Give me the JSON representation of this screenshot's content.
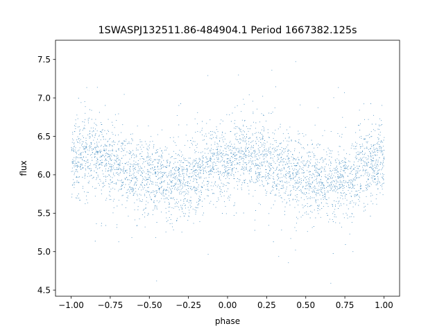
{
  "chart_data": {
    "type": "scatter",
    "title": "1SWASPJ132511.86-484904.1 Period 1667382.125s",
    "xlabel": "phase",
    "ylabel": "flux",
    "xlim": [
      -1.1,
      1.1
    ],
    "ylim": [
      4.42,
      7.75
    ],
    "x_ticks": [
      -1.0,
      -0.75,
      -0.5,
      -0.25,
      0.0,
      0.25,
      0.5,
      0.75,
      1.0
    ],
    "x_tick_labels": [
      "−1.00",
      "−0.75",
      "−0.50",
      "−0.25",
      "0.00",
      "0.25",
      "0.50",
      "0.75",
      "1.00"
    ],
    "y_ticks": [
      4.5,
      5.0,
      5.5,
      6.0,
      6.5,
      7.0,
      7.5
    ],
    "y_tick_labels": [
      "4.5",
      "5.0",
      "5.5",
      "6.0",
      "6.5",
      "7.0",
      "7.5"
    ],
    "grid": false,
    "legend": "none",
    "marker_color": "#1f77b4",
    "series": [
      {
        "x": [
          -1.0,
          -0.95,
          -0.9,
          -0.85,
          -0.8,
          -0.75,
          -0.7,
          -0.65,
          -0.6,
          -0.55,
          -0.5,
          -0.45,
          -0.4,
          -0.35,
          -0.3,
          -0.25,
          -0.2,
          -0.15,
          -0.1,
          -0.05,
          0.0,
          0.05,
          0.1,
          0.15,
          0.2,
          0.25,
          0.3,
          0.35,
          0.4,
          0.45,
          0.5,
          0.55,
          0.6,
          0.65,
          0.7,
          0.75,
          0.8,
          0.85,
          0.9,
          0.95,
          1.0
        ],
        "y": [
          6.18,
          6.22,
          6.25,
          6.24,
          6.2,
          6.15,
          6.12,
          6.08,
          6.03,
          6.0,
          5.98,
          5.95,
          5.92,
          5.9,
          5.88,
          5.93,
          6.0,
          6.06,
          6.12,
          6.16,
          6.18,
          6.22,
          6.25,
          6.24,
          6.2,
          6.15,
          6.12,
          6.08,
          6.03,
          6.0,
          5.98,
          5.95,
          5.92,
          5.9,
          5.88,
          5.93,
          6.0,
          6.06,
          6.12,
          6.16,
          6.18
        ]
      }
    ]
  }
}
